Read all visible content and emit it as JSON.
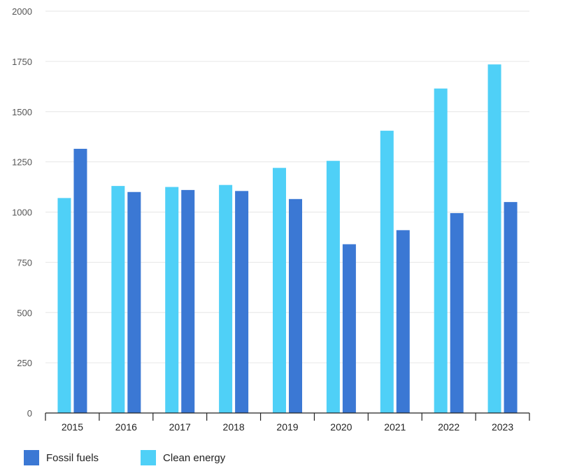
{
  "chart_data": {
    "type": "bar",
    "categories": [
      "2015",
      "2016",
      "2017",
      "2018",
      "2019",
      "2020",
      "2021",
      "2022",
      "2023"
    ],
    "series": [
      {
        "name": "Clean energy",
        "color": "#4fd0f7",
        "values": [
          1070,
          1130,
          1125,
          1135,
          1220,
          1255,
          1405,
          1615,
          1735
        ]
      },
      {
        "name": "Fossil fuels",
        "color": "#3b78d4",
        "values": [
          1315,
          1100,
          1110,
          1105,
          1065,
          840,
          910,
          995,
          1050
        ]
      }
    ],
    "yticks": [
      0,
      250,
      500,
      750,
      1000,
      1250,
      1500,
      1750,
      2000
    ],
    "ylim": [
      0,
      2000
    ],
    "title": "",
    "xlabel": "",
    "ylabel": "",
    "grid": true,
    "legend_position": "bottom-left"
  },
  "legend": {
    "items": [
      {
        "label": "Fossil fuels",
        "color": "#3b78d4"
      },
      {
        "label": "Clean energy",
        "color": "#4fd0f7"
      }
    ]
  }
}
